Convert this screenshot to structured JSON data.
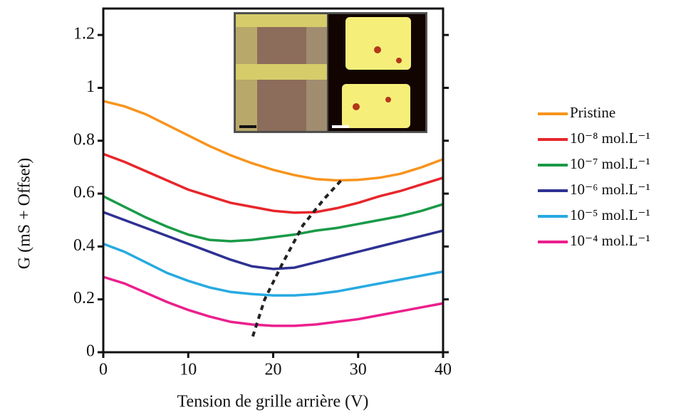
{
  "chart_data": {
    "type": "line",
    "xlabel": "Tension de grille arrière (V)",
    "ylabel": "G (mS + Offset)",
    "xlim": [
      0,
      40
    ],
    "ylim": [
      0,
      1.3
    ],
    "xticks": [
      0,
      10,
      20,
      30,
      40
    ],
    "yticks": [
      0,
      0.2,
      0.4,
      0.6,
      0.8,
      1,
      1.2
    ],
    "x": [
      0,
      2.5,
      5,
      7.5,
      10,
      12.5,
      15,
      17.5,
      20,
      22.5,
      25,
      27.5,
      30,
      32.5,
      35,
      37.5,
      40
    ],
    "series": [
      {
        "name": "Pristine",
        "color": "#f7941d",
        "values": [
          0.95,
          0.93,
          0.9,
          0.86,
          0.82,
          0.78,
          0.745,
          0.715,
          0.69,
          0.67,
          0.655,
          0.65,
          0.652,
          0.66,
          0.675,
          0.7,
          0.73
        ]
      },
      {
        "name": "10⁻⁸ mol.L⁻¹",
        "color": "#e8262b",
        "values": [
          0.75,
          0.72,
          0.685,
          0.65,
          0.615,
          0.59,
          0.565,
          0.55,
          0.535,
          0.528,
          0.53,
          0.545,
          0.565,
          0.59,
          0.61,
          0.635,
          0.66
        ]
      },
      {
        "name": "10⁻⁷ mol.L⁻¹",
        "color": "#1a9a48",
        "values": [
          0.59,
          0.55,
          0.51,
          0.475,
          0.445,
          0.425,
          0.42,
          0.425,
          0.435,
          0.445,
          0.46,
          0.47,
          0.485,
          0.5,
          0.515,
          0.535,
          0.56
        ]
      },
      {
        "name": "10⁻⁶ mol.L⁻¹",
        "color": "#2e3192",
        "values": [
          0.53,
          0.5,
          0.47,
          0.44,
          0.41,
          0.38,
          0.35,
          0.325,
          0.315,
          0.32,
          0.34,
          0.36,
          0.38,
          0.4,
          0.42,
          0.44,
          0.46
        ]
      },
      {
        "name": "10⁻⁵ mol.L⁻¹",
        "color": "#27aae1",
        "values": [
          0.41,
          0.38,
          0.34,
          0.3,
          0.27,
          0.245,
          0.228,
          0.22,
          0.215,
          0.215,
          0.22,
          0.23,
          0.245,
          0.26,
          0.275,
          0.29,
          0.305
        ]
      },
      {
        "name": "10⁻⁴ mol.L⁻¹",
        "color": "#ec1f8d",
        "values": [
          0.285,
          0.26,
          0.225,
          0.19,
          0.16,
          0.135,
          0.115,
          0.105,
          0.1,
          0.1,
          0.105,
          0.115,
          0.125,
          0.14,
          0.155,
          0.17,
          0.185
        ]
      }
    ],
    "dirac_trend": {
      "x": [
        17.6,
        19,
        21,
        23.5,
        26,
        28
      ],
      "values": [
        0.06,
        0.2,
        0.33,
        0.48,
        0.58,
        0.65
      ],
      "color": "#222"
    }
  }
}
